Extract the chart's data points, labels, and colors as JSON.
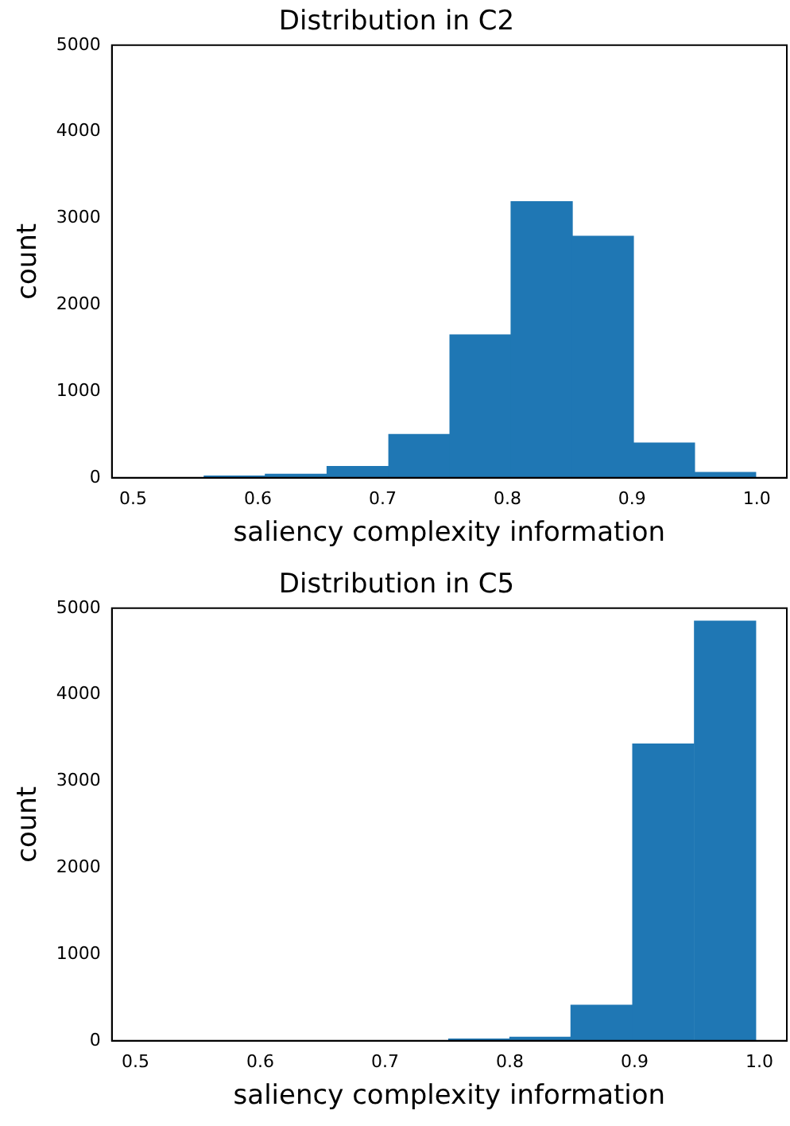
{
  "chart_data": [
    {
      "type": "histogram",
      "title": "Distribution in C2",
      "xlabel": "saliency complexity information",
      "ylabel": "count",
      "color": "#1f77b4",
      "bins": [
        0.508,
        0.557,
        0.606,
        0.655,
        0.705,
        0.754,
        0.803,
        0.852,
        0.901,
        0.95,
        0.999
      ],
      "values": [
        0,
        20,
        40,
        130,
        500,
        1650,
        3190,
        2790,
        400,
        60
      ],
      "xlim": [
        0.483,
        1.024
      ],
      "xticks": [
        {
          "value": 0.5,
          "label": "0.5"
        },
        {
          "value": 0.6,
          "label": "0.6"
        },
        {
          "value": 0.7,
          "label": "0.7"
        },
        {
          "value": 0.8,
          "label": "0.8"
        },
        {
          "value": 0.9,
          "label": "0.9"
        },
        {
          "value": 1.0,
          "label": "1.0"
        }
      ],
      "ylim": [
        0,
        5000
      ],
      "yticks": [
        0,
        1000,
        2000,
        3000,
        4000,
        5000
      ],
      "grid": false,
      "legend": false
    },
    {
      "type": "histogram",
      "title": "Distribution in C5",
      "xlabel": "saliency complexity information",
      "ylabel": "count",
      "color": "#1f77b4",
      "bins": [
        0.506,
        0.555,
        0.604,
        0.653,
        0.702,
        0.751,
        0.8,
        0.849,
        0.898,
        0.948,
        0.997
      ],
      "values": [
        0,
        0,
        0,
        0,
        0,
        20,
        40,
        410,
        3430,
        4850
      ],
      "xlim": [
        0.481,
        1.022
      ],
      "xticks": [
        {
          "value": 0.5,
          "label": "0.5"
        },
        {
          "value": 0.6,
          "label": "0.6"
        },
        {
          "value": 0.7,
          "label": "0.7"
        },
        {
          "value": 0.8,
          "label": "0.8"
        },
        {
          "value": 0.9,
          "label": "0.9"
        },
        {
          "value": 1.0,
          "label": "1.0"
        }
      ],
      "ylim": [
        0,
        5000
      ],
      "yticks": [
        0,
        1000,
        2000,
        3000,
        4000,
        5000
      ],
      "grid": false,
      "legend": false
    }
  ]
}
